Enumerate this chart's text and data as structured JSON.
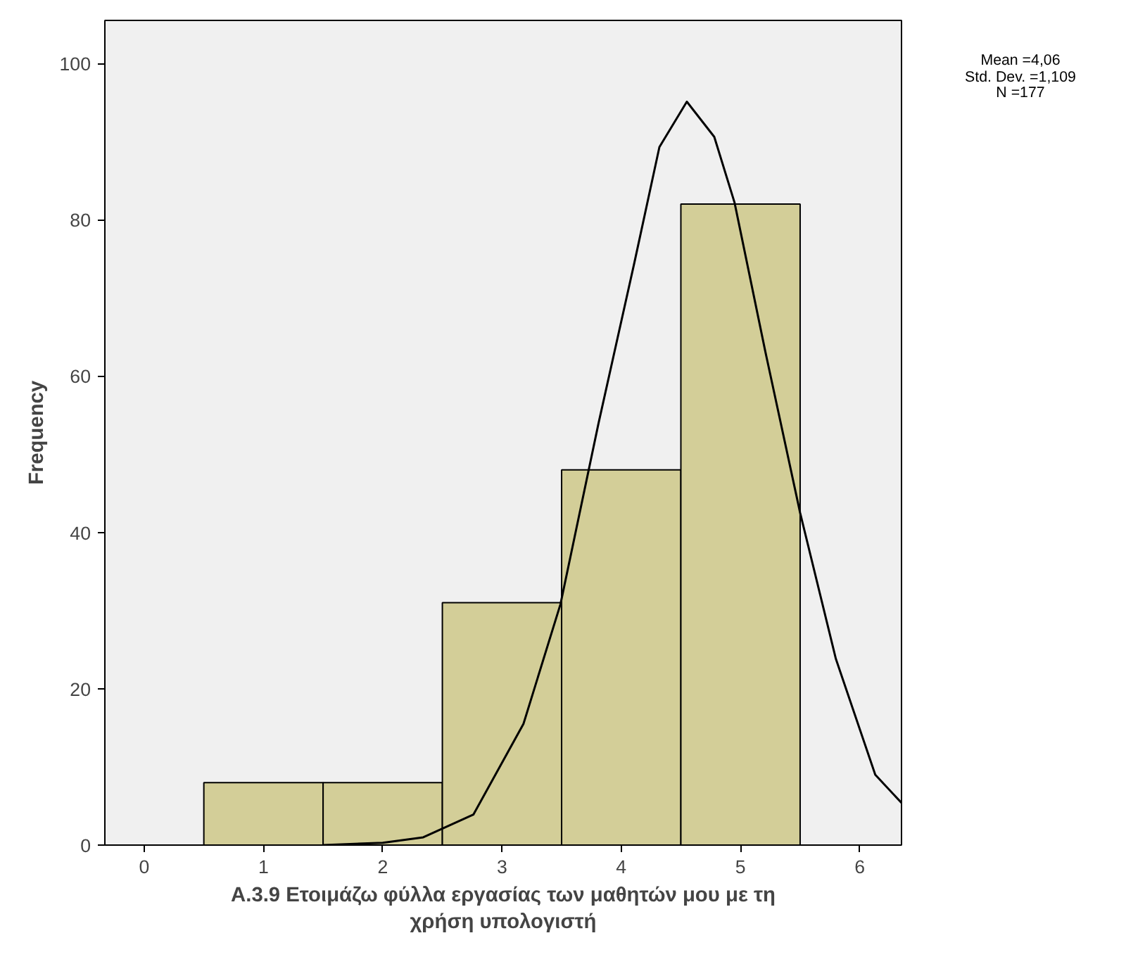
{
  "chart_data": {
    "type": "histogram",
    "xlabel": "Α.3.9 Ετοιμάζω φύλλα εργασίας των μαθητών μου με τη χρήση υπολογιστή",
    "ylabel": "Frequency",
    "bins": [
      0.5,
      1.5,
      2.5,
      3.5,
      4.5,
      5.5
    ],
    "values": [
      8,
      8,
      31,
      48,
      82
    ],
    "color": "#d3ce98",
    "series": [
      {
        "type": "line",
        "color": "#000000",
        "x": [
          1.5,
          2.0,
          2.34,
          2.76,
          3.18,
          3.49,
          3.81,
          4.11,
          4.32,
          4.55,
          4.78,
          4.95,
          5.21,
          5.5,
          5.8,
          6.13,
          6.35
        ],
        "values": [
          0,
          0.3,
          1.0,
          3.9,
          15.5,
          30.8,
          54,
          74.5,
          89.3,
          95.1,
          90.6,
          82.2,
          63,
          42.5,
          23.8,
          9,
          5.4
        ]
      }
    ],
    "xlim": [
      -0.33,
      6.35
    ],
    "ylim": [
      0,
      105.5
    ],
    "xticks": [
      0,
      1,
      2,
      3,
      4,
      5,
      6
    ],
    "yticks": [
      0,
      20,
      40,
      60,
      80,
      100
    ],
    "grid": false,
    "annotations": [
      "Mean =4,06",
      "Std. Dev. =1,109",
      "N =177"
    ]
  }
}
